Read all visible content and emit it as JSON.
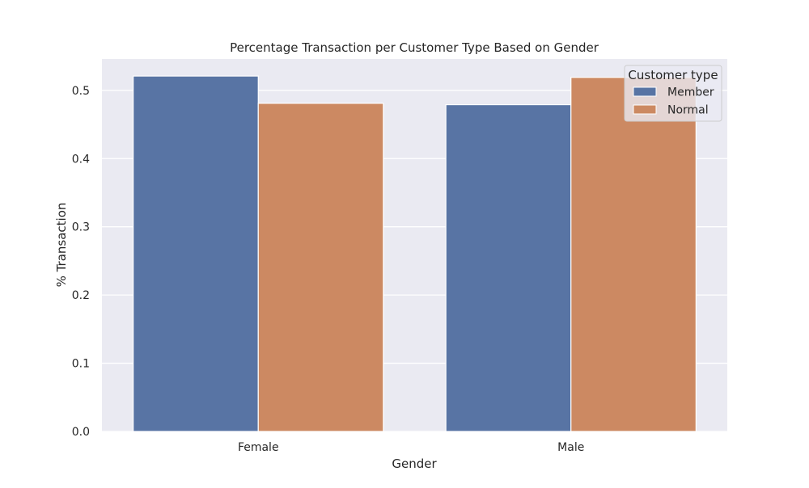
{
  "chart_data": {
    "type": "bar",
    "title": "Percentage Transaction per Customer Type Based on Gender",
    "xlabel": "Gender",
    "ylabel": "% Transaction",
    "categories": [
      "Female",
      "Male"
    ],
    "series": [
      {
        "name": "Member",
        "values": [
          0.521,
          0.479
        ],
        "color": "#5874a4"
      },
      {
        "name": "Normal",
        "values": [
          0.481,
          0.519
        ],
        "color": "#cc8962"
      }
    ],
    "ylim": [
      0,
      0.546
    ],
    "yticks": [
      "0.0",
      "0.1",
      "0.2",
      "0.3",
      "0.4",
      "0.5"
    ],
    "grid": true,
    "legend": {
      "title": "Customer type",
      "placement": "top-right"
    },
    "background": "#eaeaf2"
  }
}
